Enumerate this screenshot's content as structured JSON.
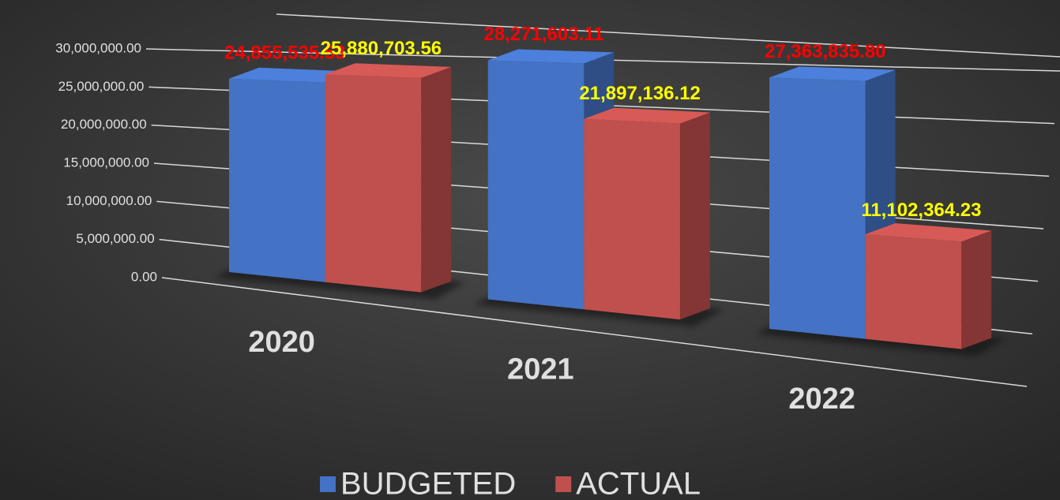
{
  "chart_data": {
    "type": "bar3d",
    "categories": [
      "2020",
      "2021",
      "2022"
    ],
    "series": [
      {
        "name": "BUDGETED",
        "color": "#4472c4",
        "label_color": "#ff0000",
        "values": [
          24855535.53,
          28271603.11,
          27363835.8
        ],
        "value_labels": [
          "24,855,535.53",
          "28,271,603.11",
          "27,363,835.80"
        ]
      },
      {
        "name": "ACTUAL",
        "color": "#c0504d",
        "label_color": "#ffff00",
        "values": [
          25880703.56,
          21897136.12,
          11102364.23
        ],
        "value_labels": [
          "25,880,703.56",
          "21,897,136.12",
          "11,102,364.23"
        ]
      }
    ],
    "ylim": [
      0,
      30000000
    ],
    "yticks": [
      {
        "value": 0,
        "label": "0.00"
      },
      {
        "value": 5000000,
        "label": "5,000,000.00"
      },
      {
        "value": 10000000,
        "label": "10,000,000.00"
      },
      {
        "value": 15000000,
        "label": "15,000,000.00"
      },
      {
        "value": 20000000,
        "label": "20,000,000.00"
      },
      {
        "value": 25000000,
        "label": "25,000,000.00"
      },
      {
        "value": 30000000,
        "label": "30,000,000.00"
      }
    ],
    "grid": true,
    "legend": "bottom"
  }
}
